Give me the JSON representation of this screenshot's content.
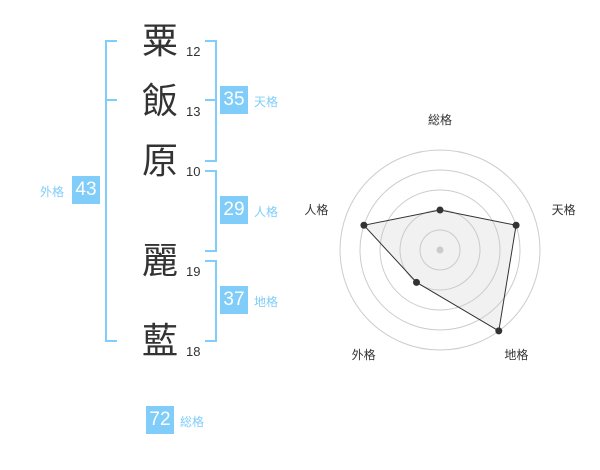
{
  "name_chars": [
    {
      "char": "粟",
      "strokes": "12"
    },
    {
      "char": "飯",
      "strokes": "13"
    },
    {
      "char": "原",
      "strokes": "10"
    },
    {
      "char": "麗",
      "strokes": "19"
    },
    {
      "char": "藍",
      "strokes": "18"
    }
  ],
  "kaku": {
    "tenkaku": {
      "value": "35",
      "label": "天格"
    },
    "jinkaku": {
      "value": "29",
      "label": "人格"
    },
    "chikaku": {
      "value": "37",
      "label": "地格"
    },
    "gaikaku": {
      "value": "43",
      "label": "外格"
    },
    "soukaku": {
      "value": "72",
      "label": "総格"
    }
  },
  "accent_color": "#7fcdf8",
  "chart_data": {
    "type": "radar",
    "axes": [
      "総格",
      "天格",
      "地格",
      "外格",
      "人格"
    ],
    "values": [
      2,
      4,
      5,
      2,
      4
    ],
    "range": [
      0,
      5
    ],
    "rings": 5
  }
}
